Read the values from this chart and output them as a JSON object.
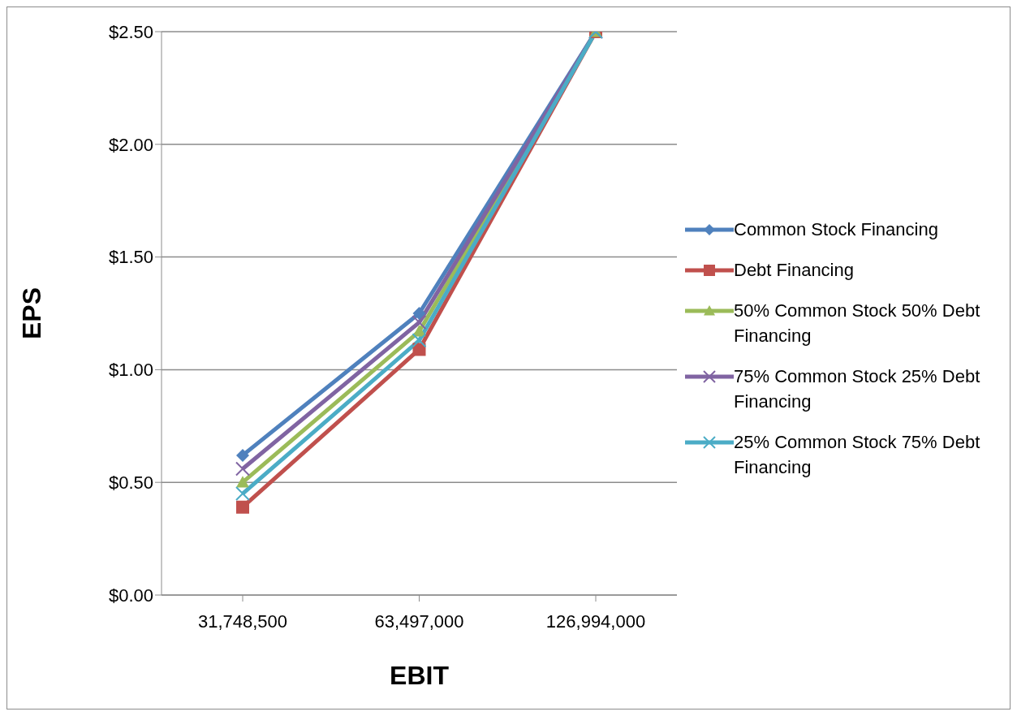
{
  "chart_data": {
    "type": "line",
    "xlabel": "EBIT",
    "ylabel": "EPS",
    "categories": [
      "31,748,500",
      "63,497,000",
      "126,994,000"
    ],
    "series": [
      {
        "name": "Common Stock Financing",
        "color": "#4f81bd",
        "marker": "diamond",
        "values": [
          0.62,
          1.25,
          2.5
        ]
      },
      {
        "name": "Debt Financing",
        "color": "#c0504d",
        "marker": "square",
        "values": [
          0.39,
          1.09,
          2.5
        ]
      },
      {
        "name": "50% Common Stock 50% Debt Financing",
        "color": "#9bbb59",
        "marker": "triangle",
        "values": [
          0.5,
          1.17,
          2.5
        ]
      },
      {
        "name": "75% Common Stock 25% Debt Financing",
        "color": "#8064a2",
        "marker": "cross",
        "values": [
          0.56,
          1.21,
          2.5
        ]
      },
      {
        "name": "25% Common Stock 75% Debt Financing",
        "color": "#4bacc6",
        "marker": "cross",
        "values": [
          0.45,
          1.13,
          2.5
        ]
      }
    ],
    "ylim": [
      0,
      2.5
    ],
    "yticks": [
      {
        "value": 0,
        "label": "$0.00"
      },
      {
        "value": 0.5,
        "label": "$0.50"
      },
      {
        "value": 1,
        "label": "$1.00"
      },
      {
        "value": 1.5,
        "label": "$1.50"
      },
      {
        "value": 2,
        "label": "$2.00"
      },
      {
        "value": 2.5,
        "label": "$2.50"
      }
    ],
    "grid": "y",
    "legend": "right"
  }
}
